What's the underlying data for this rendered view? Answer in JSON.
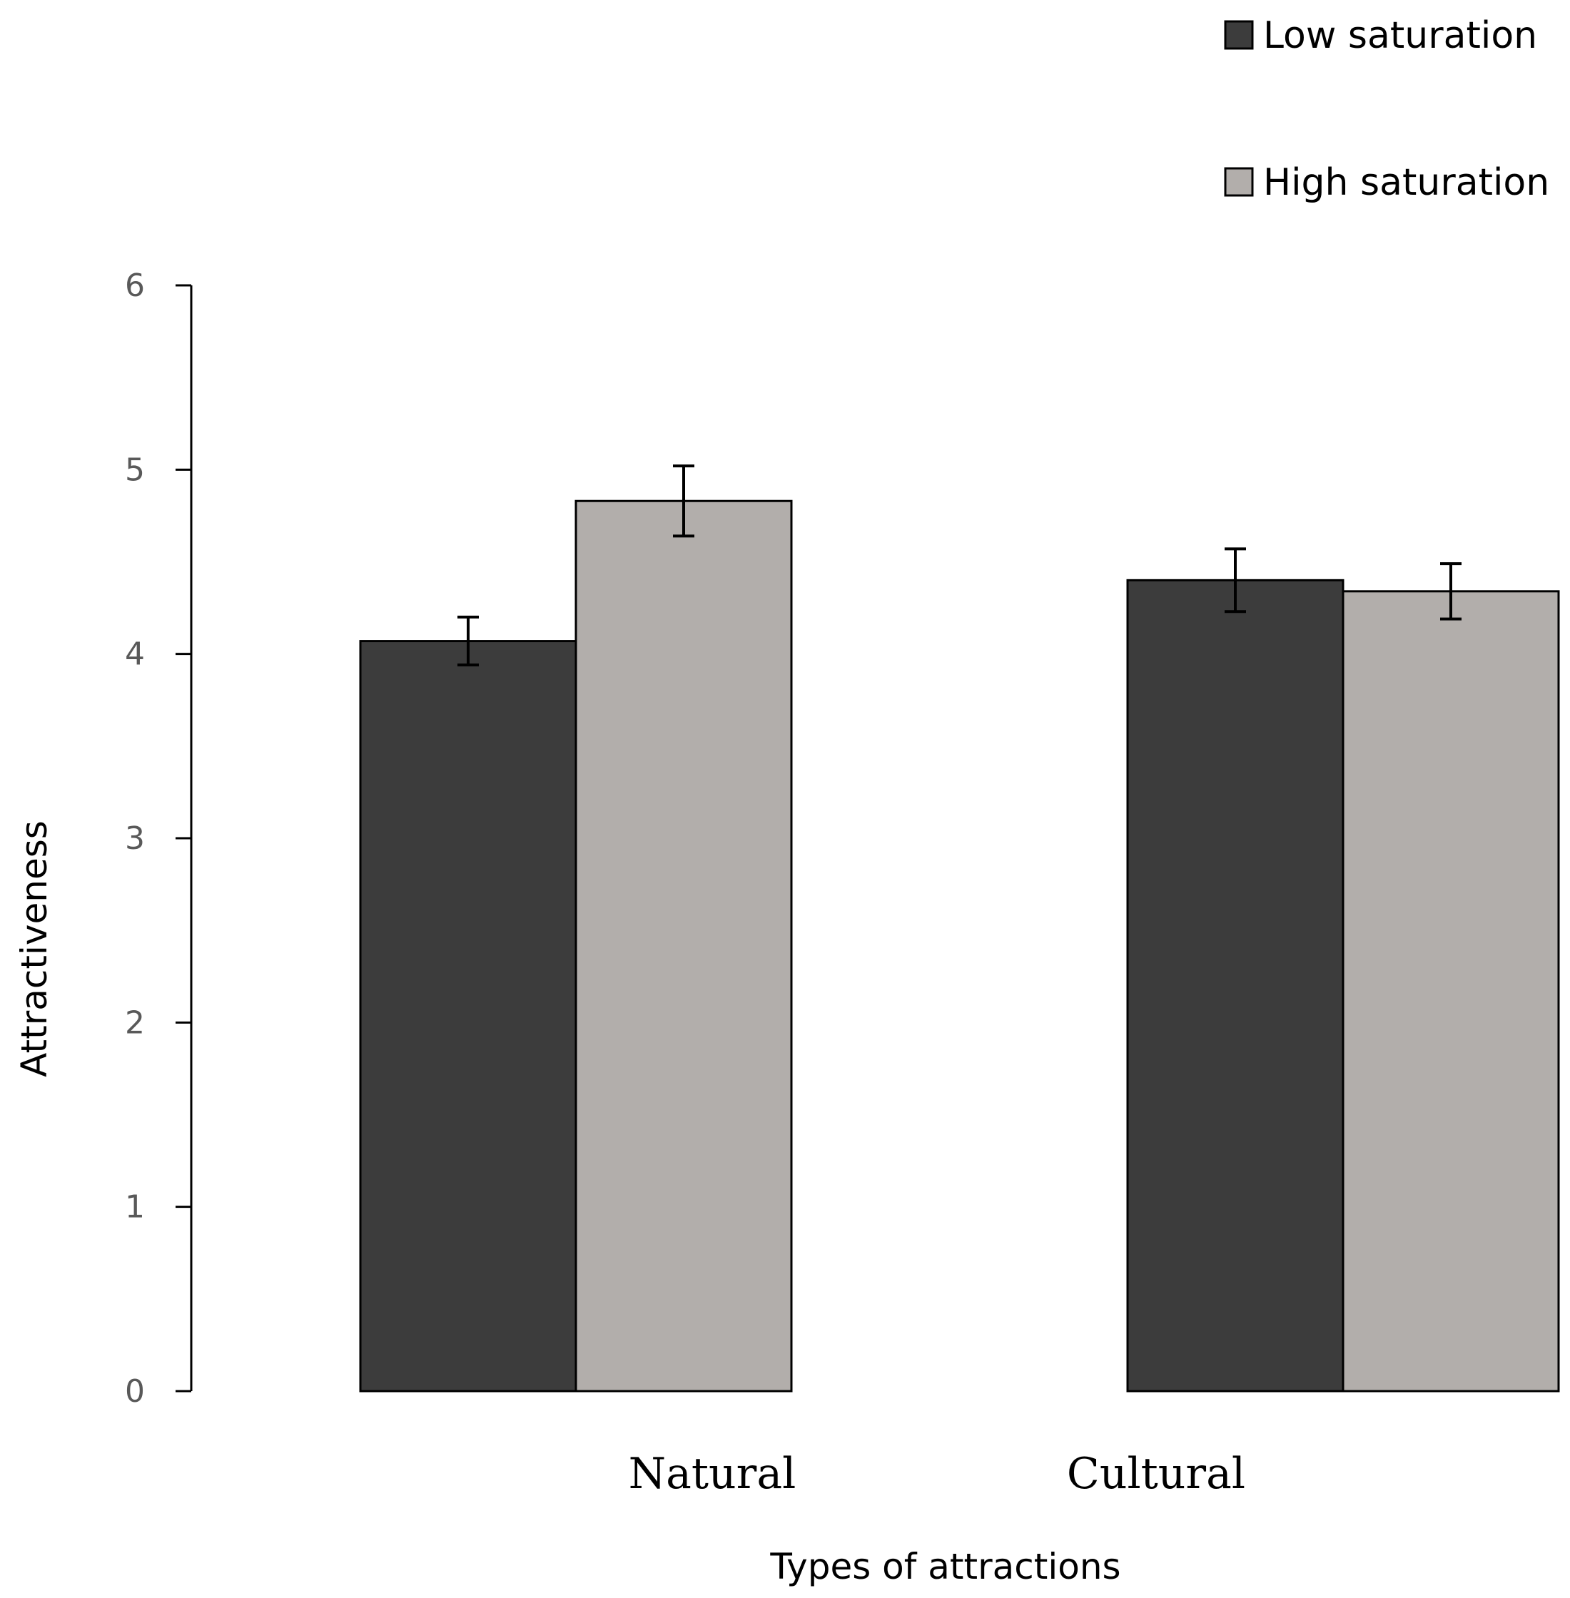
{
  "chart_data": {
    "type": "bar",
    "title": "",
    "xlabel": "Types of attractions",
    "ylabel": "Attractiveness",
    "ylim": [
      0,
      6
    ],
    "yticks": [
      "0",
      "1",
      "2",
      "3",
      "4",
      "5",
      "6"
    ],
    "grid": false,
    "legend_position": "top-right",
    "categories": [
      "Natural",
      "Cultural"
    ],
    "series": [
      {
        "name": "Low saturation",
        "color": "#3c3c3c",
        "values": [
          4.07,
          4.4
        ],
        "errors": [
          0.13,
          0.17
        ]
      },
      {
        "name": "High saturation",
        "color": "#b2aeab",
        "values": [
          4.83,
          4.34
        ],
        "errors": [
          0.19,
          0.15
        ]
      }
    ]
  }
}
